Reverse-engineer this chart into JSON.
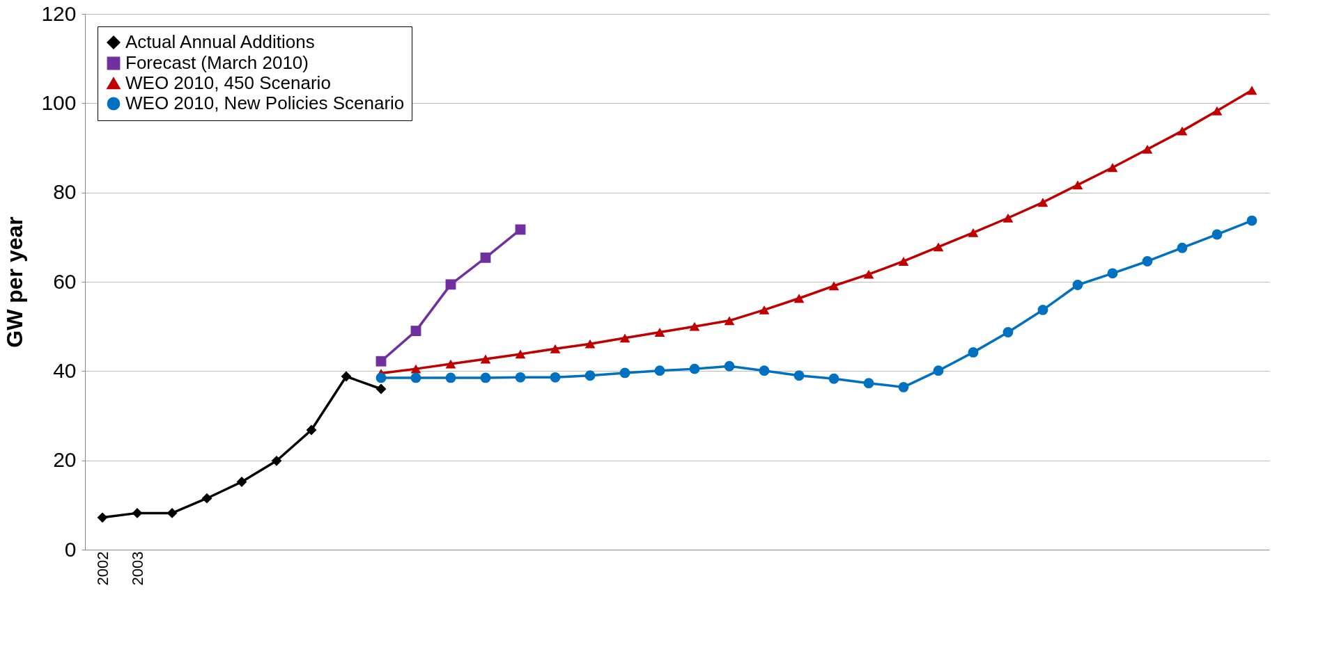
{
  "chart_data": {
    "type": "line",
    "ylabel": "GW per year",
    "categories": [
      "2002",
      "2003",
      null,
      null,
      null,
      null,
      null,
      null,
      null,
      null,
      null,
      null,
      null,
      null,
      null,
      null,
      null,
      null,
      null,
      null,
      null,
      null,
      null,
      null,
      null,
      null,
      null,
      null,
      null,
      null,
      null,
      null,
      null,
      null
    ],
    "ylim": [
      0,
      120
    ],
    "yticks": [
      0,
      20,
      40,
      60,
      80,
      100,
      120
    ],
    "grid": "y",
    "legend": "top left",
    "series": [
      {
        "name": "Actual Annual Additions",
        "color": "#000000",
        "marker": "diamond",
        "values": [
          7.2,
          8.2,
          8.2,
          11.5,
          15.2,
          19.9,
          26.8,
          38.8,
          36.0,
          null,
          null,
          null,
          null,
          null,
          null,
          null,
          null,
          null,
          null,
          null,
          null,
          null,
          null,
          null,
          null,
          null,
          null,
          null,
          null,
          null,
          null,
          null,
          null,
          null
        ]
      },
      {
        "name": "Forecast (March 2010)",
        "color": "#7030a0",
        "marker": "square",
        "values": [
          null,
          null,
          null,
          null,
          null,
          null,
          null,
          null,
          42.2,
          49.0,
          59.4,
          65.4,
          71.7,
          null,
          null,
          null,
          null,
          null,
          null,
          null,
          null,
          null,
          null,
          null,
          null,
          null,
          null,
          null,
          null,
          null,
          null,
          null,
          null,
          null
        ]
      },
      {
        "name": "WEO 2010, 450 Scenario",
        "color": "#c00000",
        "marker": "triangle",
        "values": [
          null,
          null,
          null,
          null,
          null,
          null,
          null,
          null,
          39.5,
          40.5,
          41.6,
          42.7,
          43.8,
          45.0,
          46.1,
          47.4,
          48.7,
          50.0,
          51.3,
          53.7,
          56.3,
          59.1,
          61.7,
          64.6,
          67.8,
          71.0,
          74.3,
          77.8,
          81.7,
          85.6,
          89.7,
          93.8,
          98.3,
          102.9
        ]
      },
      {
        "name": "WEO 2010, New Policies Scenario",
        "color": "#0070c0",
        "marker": "circle",
        "values": [
          null,
          null,
          null,
          null,
          null,
          null,
          null,
          null,
          38.5,
          38.5,
          38.5,
          38.5,
          38.6,
          38.6,
          39.0,
          39.6,
          40.1,
          40.5,
          41.1,
          40.1,
          39.0,
          38.3,
          37.3,
          36.4,
          40.1,
          44.2,
          48.7,
          53.7,
          59.3,
          61.9,
          64.6,
          67.6,
          70.6,
          73.7
        ]
      }
    ]
  }
}
